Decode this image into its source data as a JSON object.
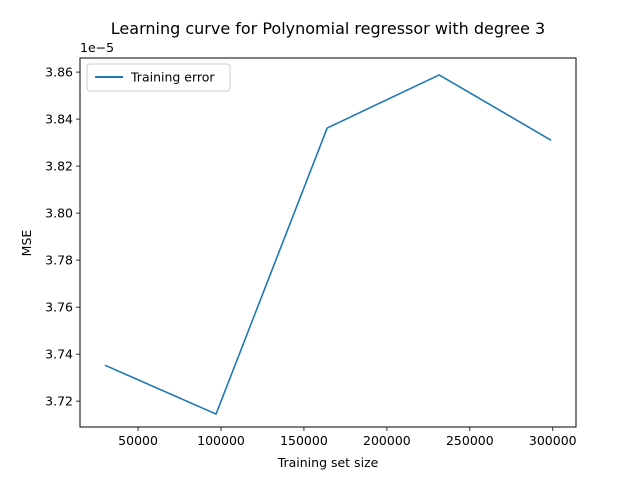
{
  "chart_data": {
    "type": "line",
    "title": "Learning curve for Polynomial regressor with degree 3",
    "xlabel": "Training set size",
    "ylabel": "MSE",
    "y_offset_label": "1e−5",
    "xlim": [
      15000,
      314000
    ],
    "ylim": [
      3.709,
      3.866
    ],
    "x_ticks": [
      50000,
      100000,
      150000,
      200000,
      250000,
      300000
    ],
    "x_tick_labels": [
      "50000",
      "100000",
      "150000",
      "200000",
      "250000",
      "300000"
    ],
    "y_ticks": [
      3.72,
      3.74,
      3.76,
      3.78,
      3.8,
      3.82,
      3.84,
      3.86
    ],
    "y_tick_labels": [
      "3.72",
      "3.74",
      "3.76",
      "3.78",
      "3.80",
      "3.82",
      "3.84",
      "3.86"
    ],
    "grid": false,
    "legend": {
      "position": "top-left"
    },
    "series": [
      {
        "name": "Training error",
        "color": "#1f77b4",
        "x": [
          30000,
          97000,
          164000,
          231500,
          299000
        ],
        "y": [
          3.7353,
          3.7145,
          3.8362,
          3.8588,
          3.831
        ]
      }
    ]
  }
}
